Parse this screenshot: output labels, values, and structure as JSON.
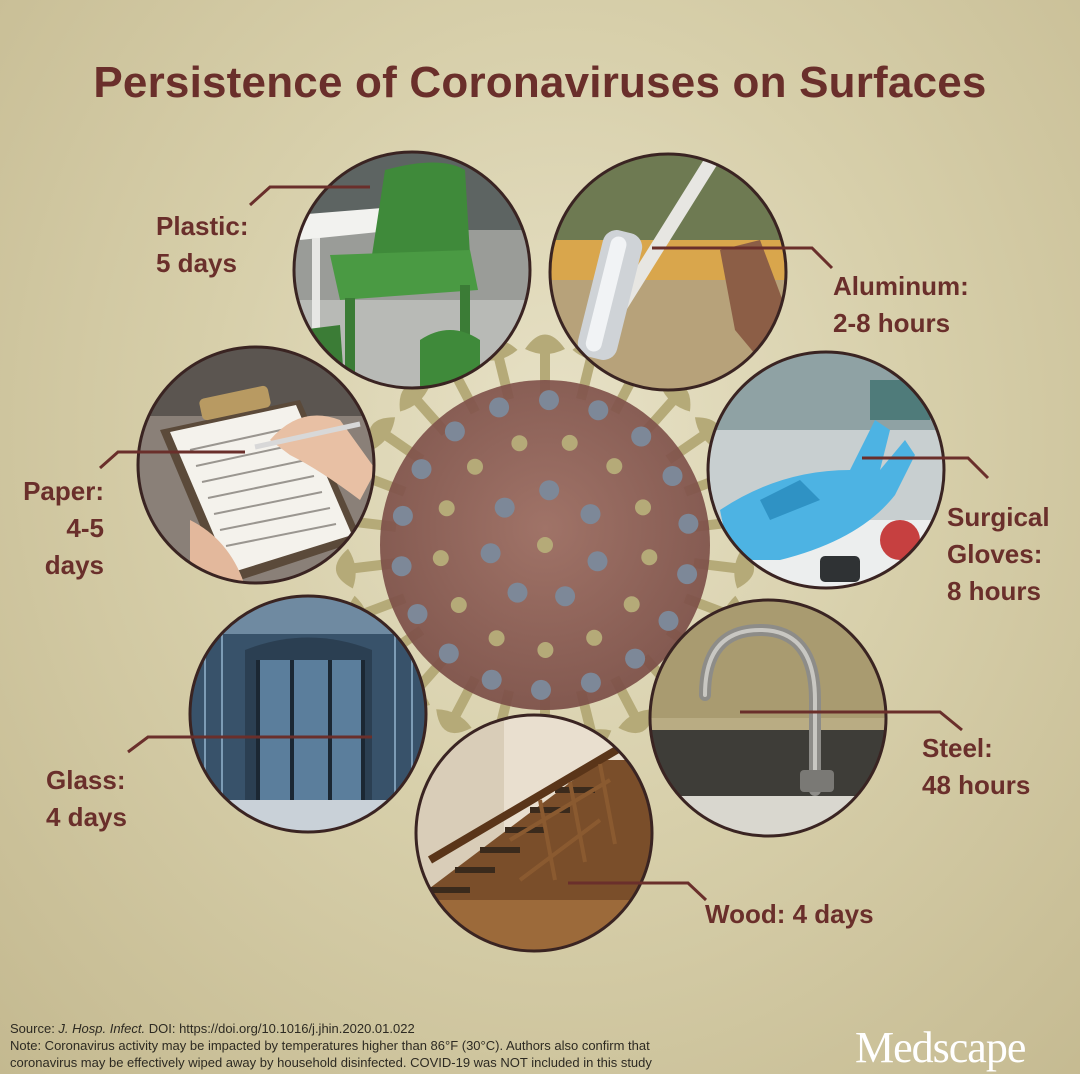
{
  "title": "Persistence of Coronaviruses on Surfaces",
  "surfaces": [
    {
      "id": "plastic",
      "lines": [
        "Plastic:",
        "5 days"
      ],
      "icon": "plastic-chairs-photo"
    },
    {
      "id": "aluminum",
      "lines": [
        "Aluminum:",
        "2-8 hours"
      ],
      "icon": "aluminum-bar-photo"
    },
    {
      "id": "paper",
      "lines": [
        "Paper:",
        "4-5",
        "days"
      ],
      "icon": "clipboard-paper-photo"
    },
    {
      "id": "surgical-gloves",
      "lines": [
        "Surgical",
        "Gloves:",
        "8 hours"
      ],
      "icon": "blue-gloves-photo"
    },
    {
      "id": "glass",
      "lines": [
        "Glass:",
        "4 days"
      ],
      "icon": "glass-revolving-door-photo"
    },
    {
      "id": "steel",
      "lines": [
        "Steel:",
        "48 hours"
      ],
      "icon": "steel-faucet-photo"
    },
    {
      "id": "wood",
      "lines": [
        "Wood: 4 days"
      ],
      "icon": "wooden-staircase-photo"
    }
  ],
  "footer": {
    "source_prefix": "Source: ",
    "source_journal": "J. Hosp. Infect.",
    "source_doi": " DOI: https://doi.org/10.1016/j.jhin.2020.01.022",
    "note_line1": "Note: Coronavirus activity may be impacted by temperatures higher than 86°F (30°C). Authors also confirm that",
    "note_line2": "coronavirus may be effectively wiped away by household disinfected. COVID-19 was NOT included in this study"
  },
  "brand": "Medscape",
  "colors": {
    "title": "#6a2f2b",
    "background": "#ddd6b6",
    "virus_body": "#8a5a52",
    "virus_spike": "#b5aa78",
    "virus_dot": "#7d8898"
  }
}
